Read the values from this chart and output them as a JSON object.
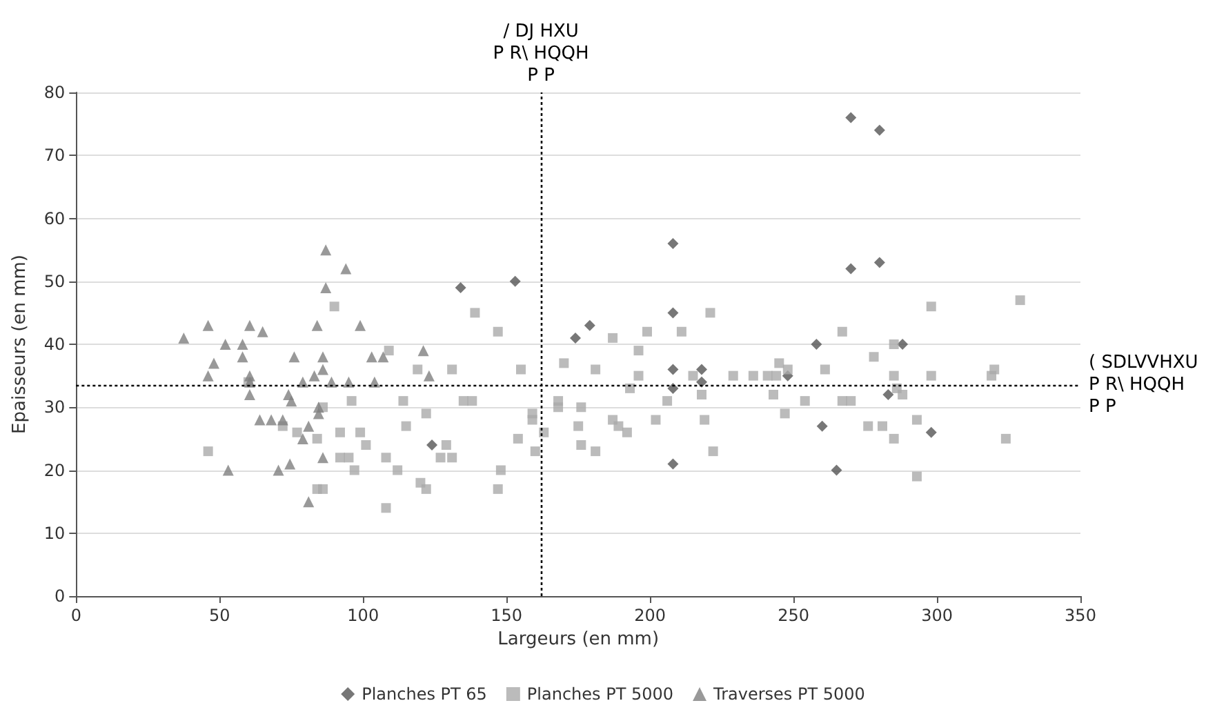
{
  "chart_data": {
    "type": "scatter",
    "xlabel": "Largeurs (en mm)",
    "ylabel": "Epaisseurs (en mm)",
    "xlim": [
      0,
      350
    ],
    "xticks": [
      0,
      50,
      100,
      150,
      200,
      250,
      300,
      350
    ],
    "ylim": [
      0,
      80
    ],
    "yticks": [
      0,
      10,
      20,
      30,
      40,
      50,
      60,
      70,
      80
    ],
    "grid": "y",
    "legend": "bottom",
    "ref_lines": [
      {
        "axis": "x",
        "value": 162,
        "label": "/ DJ HXU\nP R\\ HQQH\nP P",
        "line_style": "dotted",
        "color": "#000000"
      },
      {
        "axis": "y",
        "value": 33.5,
        "label": "( SDLVVHXU\nP R\\ HQQH\nP P",
        "line_style": "dotted",
        "color": "#000000"
      }
    ],
    "series": [
      {
        "name": "Planches PT 65",
        "color": "#555555",
        "marker": "diamond",
        "x": [
          134,
          153,
          124,
          174,
          179,
          208,
          208,
          208,
          208,
          208,
          218,
          218,
          248,
          258,
          260,
          265,
          270,
          270,
          280,
          280,
          283,
          288,
          298
        ],
        "values": [
          49,
          50,
          24,
          41,
          43,
          56,
          45,
          36,
          33,
          21,
          36,
          34,
          35,
          40,
          27,
          20,
          52,
          76,
          74,
          53,
          32,
          40,
          26
        ]
      },
      {
        "name": "Planches PT 5000",
        "color": "#aaaaaa",
        "marker": "square",
        "x": [
          46,
          72,
          77,
          84,
          60,
          84,
          90,
          139,
          147,
          109,
          119,
          131,
          155,
          96,
          114,
          135,
          138,
          86,
          122,
          115,
          92,
          99,
          101,
          108,
          129,
          127,
          131,
          92,
          95,
          97,
          112,
          86,
          120,
          122,
          147,
          148,
          108,
          154,
          159,
          159,
          160,
          163,
          170,
          168,
          168,
          176,
          175,
          176,
          181,
          181,
          187,
          187,
          189,
          192,
          193,
          196,
          196,
          199,
          202,
          206,
          211,
          215,
          218,
          219,
          221,
          222,
          229,
          236,
          241,
          244,
          245,
          243,
          247,
          248,
          254,
          261,
          267,
          267,
          270,
          278,
          276,
          281,
          285,
          285,
          285,
          286,
          288,
          293,
          293,
          298,
          298,
          319,
          320,
          324,
          329
        ],
        "values": [
          23,
          27,
          26,
          25,
          34,
          17,
          46,
          45,
          42,
          39,
          36,
          36,
          36,
          31,
          31,
          31,
          31,
          30,
          29,
          27,
          26,
          26,
          24,
          22,
          24,
          22,
          22,
          22,
          22,
          20,
          20,
          17,
          18,
          17,
          17,
          20,
          14,
          25,
          29,
          28,
          23,
          26,
          37,
          31,
          30,
          30,
          27,
          24,
          23,
          36,
          41,
          28,
          27,
          26,
          33,
          39,
          35,
          42,
          28,
          31,
          42,
          35,
          32,
          28,
          45,
          23,
          35,
          35,
          35,
          35,
          37,
          32,
          29,
          36,
          31,
          36,
          42,
          31,
          31,
          38,
          27,
          27,
          40,
          35,
          25,
          33,
          32,
          28,
          19,
          46,
          35,
          35,
          36,
          25,
          47
        ]
      },
      {
        "name": "Traverses PT 5000",
        "color": "#808080",
        "marker": "triangle",
        "x": [
          37.5,
          46,
          60.5,
          65,
          52,
          58,
          48,
          58,
          46,
          60.5,
          60.5,
          60.5,
          76,
          83,
          79,
          74,
          75,
          64,
          68,
          72,
          81,
          79,
          53,
          70.5,
          74.5,
          81,
          84,
          87,
          94,
          87,
          99,
          86,
          86,
          103,
          107,
          121,
          123,
          89,
          95,
          104,
          84.5,
          84.5,
          86
        ],
        "values": [
          41,
          43,
          43,
          42,
          40,
          40,
          37,
          38,
          35,
          35,
          34,
          32,
          38,
          35,
          34,
          32,
          31,
          28,
          28,
          28,
          27,
          25,
          20,
          20,
          21,
          15,
          43,
          55,
          52,
          49,
          43,
          38,
          36,
          38,
          38,
          39,
          35,
          34,
          34,
          34,
          30,
          29,
          22
        ]
      }
    ]
  }
}
